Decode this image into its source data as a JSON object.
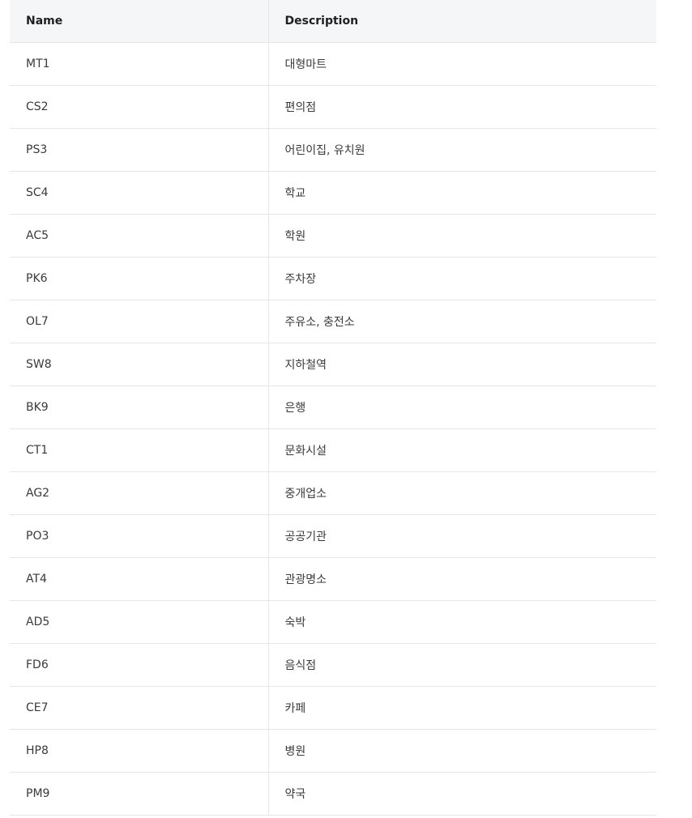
{
  "table": {
    "headers": {
      "name": "Name",
      "description": "Description"
    },
    "rows": [
      {
        "name": "MT1",
        "description": "대형마트"
      },
      {
        "name": "CS2",
        "description": "편의점"
      },
      {
        "name": "PS3",
        "description": "어린이집, 유치원"
      },
      {
        "name": "SC4",
        "description": "학교"
      },
      {
        "name": "AC5",
        "description": "학원"
      },
      {
        "name": "PK6",
        "description": "주차장"
      },
      {
        "name": "OL7",
        "description": "주유소, 충전소"
      },
      {
        "name": "SW8",
        "description": "지하철역"
      },
      {
        "name": "BK9",
        "description": "은행"
      },
      {
        "name": "CT1",
        "description": "문화시설"
      },
      {
        "name": "AG2",
        "description": "중개업소"
      },
      {
        "name": "PO3",
        "description": "공공기관"
      },
      {
        "name": "AT4",
        "description": "관광명소"
      },
      {
        "name": "AD5",
        "description": "숙박"
      },
      {
        "name": "FD6",
        "description": "음식점"
      },
      {
        "name": "CE7",
        "description": "카페"
      },
      {
        "name": "HP8",
        "description": "병원"
      },
      {
        "name": "PM9",
        "description": "약국"
      }
    ]
  }
}
